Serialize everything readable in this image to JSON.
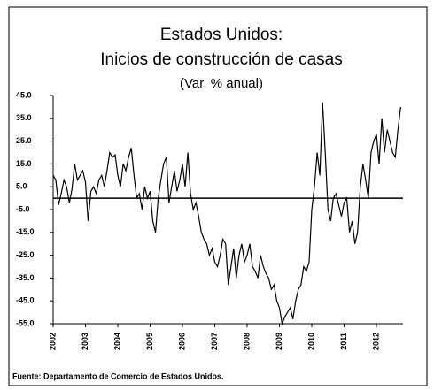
{
  "chart_data": {
    "type": "line",
    "title": "Estados Unidos:",
    "subtitle": "Inicios de construcción  de casas",
    "subtitle2": "(Var. % anual)",
    "source": "Fuente: Departamento   de Comercio de Estados Unidos.",
    "categories": [
      "2002",
      null,
      null,
      null,
      null,
      null,
      null,
      null,
      null,
      null,
      null,
      null,
      "2003",
      null,
      null,
      null,
      null,
      null,
      null,
      null,
      null,
      null,
      null,
      null,
      "2004",
      null,
      null,
      null,
      null,
      null,
      null,
      null,
      null,
      null,
      null,
      null,
      "2005",
      null,
      null,
      null,
      null,
      null,
      null,
      null,
      null,
      null,
      null,
      null,
      "2006",
      null,
      null,
      null,
      null,
      null,
      null,
      null,
      null,
      null,
      null,
      null,
      "2007",
      null,
      null,
      null,
      null,
      null,
      null,
      null,
      null,
      null,
      null,
      null,
      "2008",
      null,
      null,
      null,
      null,
      null,
      null,
      null,
      null,
      null,
      null,
      null,
      "2009",
      null,
      null,
      null,
      null,
      null,
      null,
      null,
      null,
      null,
      null,
      null,
      "2010",
      null,
      null,
      null,
      null,
      null,
      null,
      null,
      null,
      null,
      null,
      null,
      "2011",
      null,
      null,
      null,
      null,
      null,
      null,
      null,
      null,
      null,
      null,
      null,
      "2012",
      null,
      null,
      null,
      null,
      null,
      null,
      null,
      null,
      null
    ],
    "series": [
      {
        "color": "#000000",
        "values": [
          10,
          8,
          -3,
          2,
          8,
          5,
          -2,
          4,
          15,
          8,
          10,
          12,
          7,
          -10,
          3,
          5,
          2,
          8,
          10,
          5,
          12,
          20,
          18,
          19,
          10,
          5,
          15,
          12,
          18,
          22,
          10,
          0,
          2,
          -5,
          5,
          0,
          3,
          -10,
          -15,
          0,
          8,
          15,
          18,
          -2,
          5,
          12,
          3,
          8,
          15,
          5,
          20,
          2,
          -5,
          -2,
          -8,
          -15,
          -18,
          -20,
          -25,
          -22,
          -28,
          -30,
          -25,
          -18,
          -20,
          -38,
          -30,
          -22,
          -35,
          -25,
          -20,
          -28,
          -25,
          -20,
          -30,
          -32,
          -35,
          -25,
          -30,
          -33,
          -35,
          -40,
          -38,
          -45,
          -48,
          -55,
          -52,
          -50,
          -48,
          -53,
          -45,
          -40,
          -38,
          -30,
          -32,
          -28,
          -5,
          5,
          20,
          10,
          42,
          20,
          -5,
          -10,
          0,
          2,
          -3,
          -8,
          -2,
          0,
          -15,
          -10,
          -20,
          -15,
          5,
          15,
          8,
          0,
          20,
          25,
          28,
          15,
          35,
          20,
          30,
          25,
          20,
          18,
          30,
          40
        ]
      }
    ],
    "ylim": [
      -55,
      45
    ],
    "yticks": [
      {
        "value": 45,
        "label": "45.0"
      },
      {
        "value": 35,
        "label": "35.0"
      },
      {
        "value": 25,
        "label": "25.0"
      },
      {
        "value": 15,
        "label": "15.0"
      },
      {
        "value": 5,
        "label": "5.0"
      },
      {
        "value": -5,
        "label": "-5.0"
      },
      {
        "value": -15,
        "label": "-15.0"
      },
      {
        "value": -25,
        "label": "-25.0"
      },
      {
        "value": -35,
        "label": "-35.0"
      },
      {
        "value": -45,
        "label": "-45.0"
      },
      {
        "value": -55,
        "label": "-55.0"
      }
    ]
  }
}
